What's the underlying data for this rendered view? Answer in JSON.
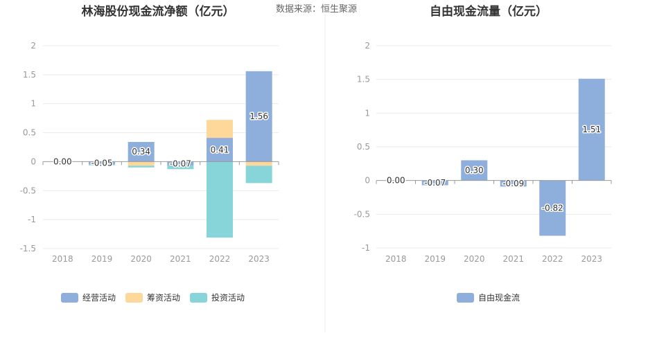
{
  "source": "数据来源：恒生聚源",
  "colors": {
    "operating": "#8eaedc",
    "financing": "#fdd89a",
    "investing": "#88d5d9",
    "fcf": "#8eaedc"
  },
  "chart_data": [
    {
      "type": "bar",
      "stacked": true,
      "title": "林海股份现金流净额（亿元）",
      "categories": [
        "2018",
        "2019",
        "2020",
        "2021",
        "2022",
        "2023"
      ],
      "ylim": [
        -1.5,
        2
      ],
      "yticks": [
        "2",
        "1.5",
        "1",
        "0.5",
        "0",
        "-0.5",
        "-1",
        "-1.5"
      ],
      "series": [
        {
          "name": "经营活动",
          "values": [
            0.0,
            -0.05,
            0.34,
            -0.07,
            0.41,
            1.56
          ]
        },
        {
          "name": "筹资活动",
          "values": [
            0.0,
            0.0,
            -0.07,
            0.0,
            0.31,
            -0.07
          ]
        },
        {
          "name": "投资活动",
          "values": [
            0.0,
            -0.01,
            -0.03,
            -0.06,
            -1.31,
            -0.3
          ]
        }
      ],
      "data_labels": [
        "0.00",
        "-0.05",
        "0.34",
        "-0.07",
        "0.41",
        "1.56"
      ],
      "legend_position": "bottom"
    },
    {
      "type": "bar",
      "title": "自由现金流量（亿元）",
      "categories": [
        "2018",
        "2019",
        "2020",
        "2021",
        "2022",
        "2023"
      ],
      "ylim": [
        -1,
        2
      ],
      "yticks": [
        "2",
        "1.5",
        "1",
        "0.5",
        "0",
        "-0.5",
        "-1"
      ],
      "series": [
        {
          "name": "自由现金流",
          "values": [
            0.0,
            -0.07,
            0.3,
            -0.09,
            -0.82,
            1.51
          ]
        }
      ],
      "data_labels": [
        "0.00",
        "-0.07",
        "0.30",
        "-0.09",
        "-0.82",
        "1.51"
      ],
      "legend_position": "bottom"
    }
  ]
}
